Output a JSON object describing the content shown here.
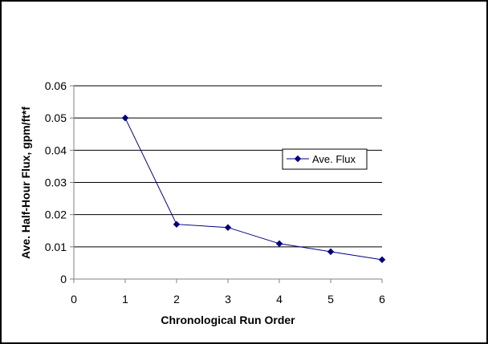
{
  "chart_data": {
    "type": "line",
    "title": "",
    "xlabel": "Chronological Run Order",
    "ylabel": "Ave. Half-Hour Flux, gpm/ft*f",
    "xlim": [
      0,
      6
    ],
    "ylim": [
      0,
      0.06
    ],
    "x_ticks": [
      "0",
      "1",
      "2",
      "3",
      "4",
      "5",
      "6"
    ],
    "y_ticks": [
      "0",
      "0.01",
      "0.02",
      "0.03",
      "0.04",
      "0.05",
      "0.06"
    ],
    "grid": "horizontal",
    "legend_position": "right",
    "series": [
      {
        "name": "Ave. Flux",
        "color": "#000080",
        "x": [
          1,
          2,
          3,
          4,
          5,
          6
        ],
        "y": [
          0.05,
          0.017,
          0.016,
          0.011,
          0.0085,
          0.006
        ]
      }
    ]
  }
}
